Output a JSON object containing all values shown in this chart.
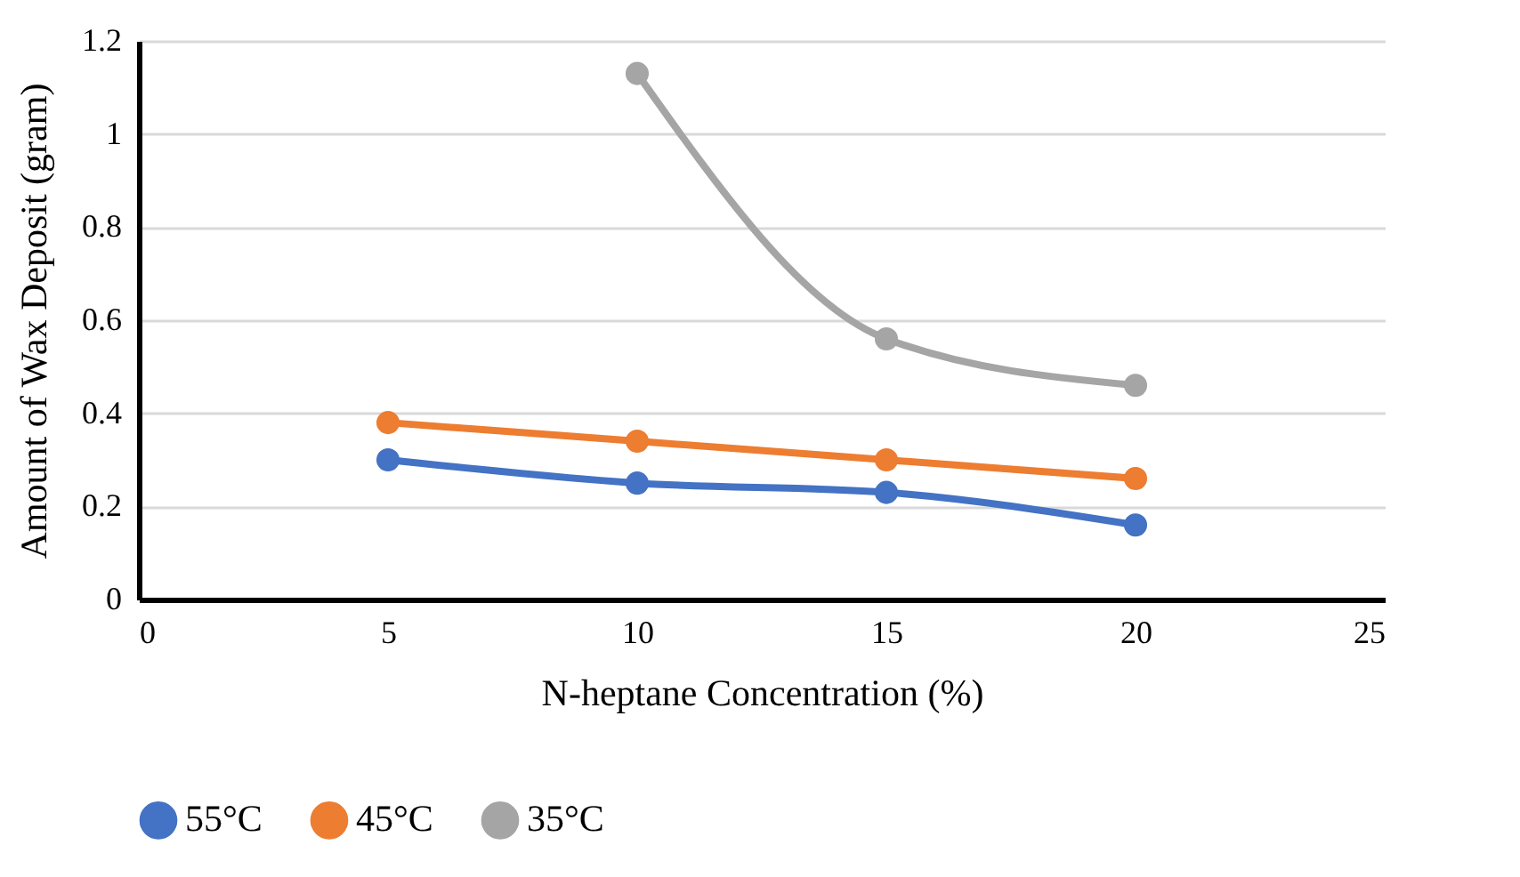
{
  "chart_data": {
    "type": "line",
    "xlabel": "N-heptane Concentration (%)",
    "ylabel": "Amount of Wax Deposit (gram)",
    "x": [
      5,
      10,
      15,
      20
    ],
    "series": [
      {
        "name": "55°C",
        "color": "#4472c4",
        "values": [
          0.3,
          0.25,
          0.23,
          0.16
        ]
      },
      {
        "name": "45°C",
        "color": "#ed7d31",
        "values": [
          0.38,
          0.34,
          0.3,
          0.26
        ]
      },
      {
        "name": "35°C",
        "color": "#a5a5a5",
        "values": [
          null,
          1.13,
          0.56,
          0.46
        ]
      }
    ],
    "xlim": [
      0,
      25
    ],
    "xticks": [
      0,
      5,
      10,
      15,
      20,
      25
    ],
    "ylim": [
      0,
      1.2
    ],
    "yticks": [
      0,
      0.2,
      0.4,
      0.6,
      0.8,
      1,
      1.2
    ],
    "grid": "y",
    "legend": "bottom",
    "marker": "circle",
    "line_style": "solid"
  }
}
